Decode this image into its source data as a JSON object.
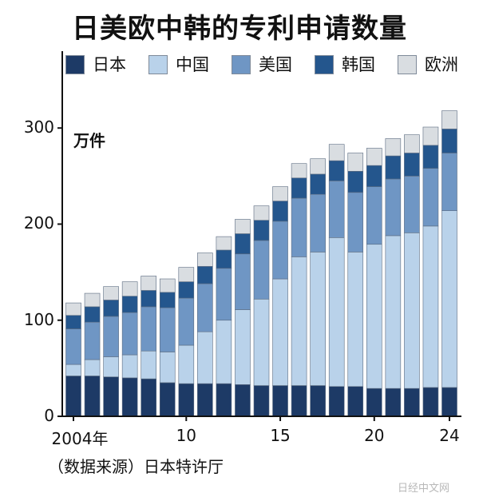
{
  "title": "日美欧中韩的专利申请数量",
  "unit_label": "万件",
  "source": "（数据来源）日本特许厅",
  "watermark": "日经中文网",
  "colors": {
    "japan": "#1d3a66",
    "china": "#b9d2ea",
    "usa": "#6f96c4",
    "korea": "#24568d",
    "europe": "#d9dde1"
  },
  "chart_data": {
    "type": "bar",
    "stacked": true,
    "x": [
      2004,
      2005,
      2006,
      2007,
      2008,
      2009,
      2010,
      2011,
      2012,
      2013,
      2014,
      2015,
      2016,
      2017,
      2018,
      2019,
      2020,
      2021,
      2022,
      2023,
      2024
    ],
    "x_tick_labels": [
      {
        "x": 2004,
        "label": "2004年"
      },
      {
        "x": 2010,
        "label": "10"
      },
      {
        "x": 2015,
        "label": "15"
      },
      {
        "x": 2020,
        "label": "20"
      },
      {
        "x": 2024,
        "label": "24"
      }
    ],
    "series": [
      {
        "name": "日本",
        "color_key": "japan",
        "values": [
          42,
          42,
          41,
          40,
          39,
          35,
          34,
          34,
          34,
          33,
          32,
          32,
          32,
          32,
          31,
          31,
          29,
          29,
          29,
          30,
          30
        ]
      },
      {
        "name": "中国",
        "color_key": "china",
        "values": [
          12,
          17,
          21,
          24,
          29,
          32,
          40,
          54,
          66,
          78,
          90,
          111,
          134,
          139,
          155,
          140,
          150,
          159,
          162,
          168,
          184
        ]
      },
      {
        "name": "美国",
        "color_key": "usa",
        "values": [
          37,
          39,
          42,
          44,
          46,
          46,
          49,
          50,
          54,
          58,
          61,
          60,
          61,
          60,
          59,
          62,
          60,
          59,
          59,
          60,
          60
        ]
      },
      {
        "name": "韩国",
        "color_key": "korea",
        "values": [
          14,
          16,
          17,
          17,
          17,
          16,
          17,
          18,
          19,
          21,
          21,
          21,
          21,
          21,
          21,
          22,
          22,
          24,
          24,
          24,
          25
        ]
      },
      {
        "name": "欧洲",
        "color_key": "europe",
        "values": [
          13,
          14,
          14,
          15,
          15,
          14,
          15,
          14,
          14,
          15,
          15,
          15,
          15,
          16,
          17,
          19,
          18,
          18,
          19,
          19,
          19
        ]
      }
    ],
    "ylim": [
      0,
      380
    ],
    "y_ticks": [
      0,
      100,
      200,
      300
    ],
    "grid": false,
    "legend": "top"
  }
}
